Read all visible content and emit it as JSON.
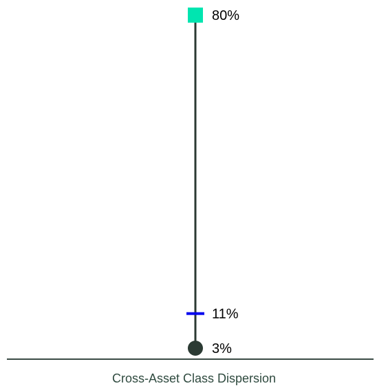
{
  "chart_data": {
    "type": "dot-range",
    "categories": [
      "Cross-Asset Class Dispersion"
    ],
    "ylim": [
      3,
      80
    ],
    "unit": "%",
    "points": [
      {
        "label": "80%",
        "value": 80,
        "marker": "square",
        "color": "#00e5b0"
      },
      {
        "label": "11%",
        "value": 11,
        "marker": "dash",
        "color": "#0000ee"
      },
      {
        "label": "3%",
        "value": 3,
        "marker": "circle",
        "color": "#2b3a33"
      }
    ],
    "range_line_color": "#2b3a33",
    "baseline_color": "#3a4a44",
    "category_label_color": "#2f4a3f"
  }
}
